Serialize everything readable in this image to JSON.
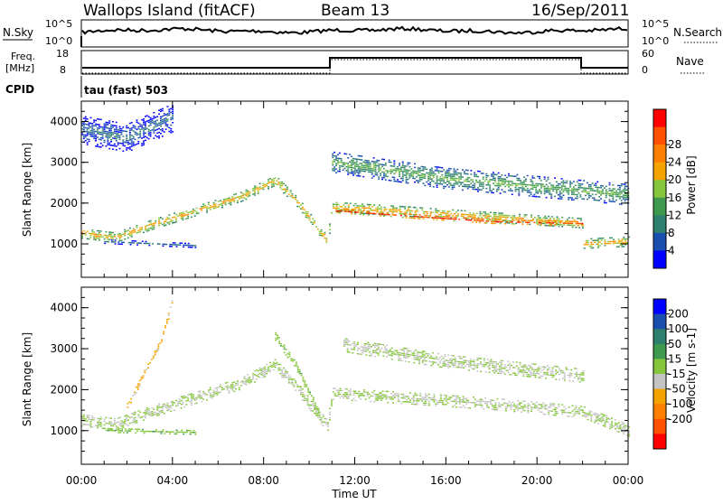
{
  "header": {
    "station": "Wallops Island (fitACF)",
    "beam": "Beam 13",
    "date": "16/Sep/2011"
  },
  "params": {
    "nsky_label": "N.Sky",
    "nsky_ticks": [
      "10^5",
      "10^0"
    ],
    "nsearch_label": "N.Search",
    "nsearch_ticks": [
      "10^5",
      "10^0"
    ],
    "freq_label": "Freq.",
    "freq_unit": "[MHz]",
    "freq_ticks": [
      "18",
      "8"
    ],
    "nave_label": "Nave",
    "nave_ticks": [
      "60",
      "0"
    ],
    "cpid_label": "CPID",
    "cpid_value": "tau (fast) 503"
  },
  "colors": {
    "power": [
      "#0000ff",
      "#1a4fb0",
      "#2f7f6e",
      "#3f9a50",
      "#86c63c",
      "#f4a300",
      "#ff8000",
      "#ff5000",
      "#ff0000"
    ],
    "velocity": [
      "#ff0000",
      "#ff5000",
      "#ff8000",
      "#f4a300",
      "#c4c4c4",
      "#86c63c",
      "#3f9a50",
      "#2f7f6e",
      "#1a4fb0",
      "#0000ff"
    ]
  },
  "chart_data": [
    {
      "type": "heatmap",
      "name": "power",
      "ylabel": "Slant Range [km]",
      "colorbar_label": "Power [dB]",
      "colorbar_ticks": [
        "4",
        "8",
        "12",
        "16",
        "20",
        "24",
        "28"
      ],
      "yticks": [
        "1000",
        "2000",
        "3000",
        "4000"
      ],
      "xticks": [
        "00:00",
        "04:00",
        "08:00",
        "12:00",
        "16:00",
        "20:00",
        "00:00"
      ],
      "xlim_hours": [
        0,
        24
      ],
      "ylim_km": [
        180,
        4500
      ],
      "zlim_db": [
        0,
        32
      ],
      "bands": [
        {
          "points": [
            [
              0.0,
              1250
            ],
            [
              1.5,
              1150
            ],
            [
              3.0,
              1450
            ],
            [
              5.0,
              1800
            ],
            [
              7.0,
              2150
            ],
            [
              8.5,
              2550
            ],
            [
              9.5,
              2000
            ],
            [
              10.8,
              1050
            ],
            [
              11.0,
              1900
            ],
            [
              14.0,
              1800
            ],
            [
              18.0,
              1650
            ],
            [
              22.0,
              1500
            ],
            [
              22.0,
              1000
            ],
            [
              24.0,
              1050
            ]
          ],
          "width_km": 230,
          "value_db": 21
        },
        {
          "points": [
            [
              11.0,
              1820
            ],
            [
              14.0,
              1700
            ],
            [
              18.0,
              1550
            ],
            [
              22.0,
              1500
            ]
          ],
          "width_km": 110,
          "value_db": 29
        },
        {
          "points": [
            [
              1.0,
              1050
            ],
            [
              5.0,
              950
            ]
          ],
          "width_km": 90,
          "value_db": 7
        },
        {
          "points": [
            [
              11.0,
              3000
            ],
            [
              16.0,
              2600
            ],
            [
              22.0,
              2300
            ],
            [
              24.0,
              2200
            ]
          ],
          "width_km": 500,
          "value_db": 14
        },
        {
          "points": [
            [
              0.0,
              3800
            ],
            [
              2.0,
              3600
            ],
            [
              4.0,
              4100
            ]
          ],
          "width_km": 700,
          "value_db": 8
        }
      ]
    },
    {
      "type": "heatmap",
      "name": "velocity",
      "ylabel": "Slant Range [km]",
      "colorbar_label": "Velocity [m s-1]",
      "colorbar_ticks": [
        "200",
        "100",
        "50",
        "15",
        "-15",
        "-50",
        "-100",
        "-200"
      ],
      "yticks": [
        "1000",
        "2000",
        "3000",
        "4000"
      ],
      "xticks": [
        "00:00",
        "04:00",
        "08:00",
        "12:00",
        "16:00",
        "20:00",
        "00:00"
      ],
      "xlabel": "Time UT",
      "xlim_hours": [
        0,
        24
      ],
      "ylim_km": [
        180,
        4500
      ],
      "zlim_ms": [
        -250,
        250
      ],
      "bands": [
        {
          "points": [
            [
              0.0,
              1250
            ],
            [
              1.5,
              1150
            ],
            [
              3.0,
              1450
            ],
            [
              5.0,
              1800
            ],
            [
              7.0,
              2150
            ],
            [
              8.5,
              2600
            ],
            [
              9.5,
              2000
            ],
            [
              10.8,
              1100
            ],
            [
              11.0,
              1900
            ],
            [
              14.0,
              1800
            ],
            [
              18.0,
              1650
            ],
            [
              22.0,
              1450
            ],
            [
              24.0,
              1000
            ]
          ],
          "width_km": 280,
          "value_ms": 0
        },
        {
          "points": [
            [
              1.0,
              1000
            ],
            [
              5.0,
              950
            ]
          ],
          "width_km": 90,
          "value_ms": 40
        },
        {
          "points": [
            [
              8.5,
              3300
            ],
            [
              9.5,
              2500
            ],
            [
              10.5,
              1300
            ]
          ],
          "width_km": 200,
          "value_ms": 35
        },
        {
          "points": [
            [
              11.5,
              3100
            ],
            [
              16.0,
              2700
            ],
            [
              22.0,
              2350
            ]
          ],
          "width_km": 350,
          "value_ms": 0
        },
        {
          "points": [
            [
              2.0,
              1600
            ],
            [
              3.5,
              3200
            ],
            [
              4.0,
              4200
            ]
          ],
          "width_km": 160,
          "value_ms": -60
        }
      ]
    }
  ],
  "time_axis_label": "Time UT"
}
